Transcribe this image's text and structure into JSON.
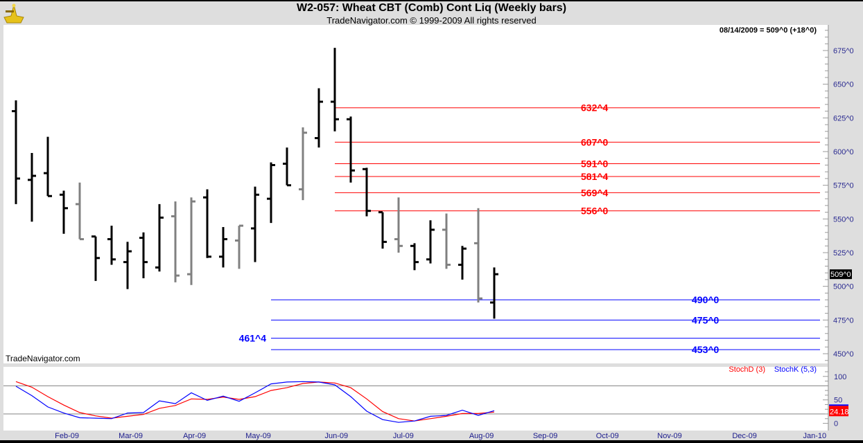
{
  "header": {
    "title": "W2-057:  Wheat CBT (Comb) Cont Liq  (Weekly bars)",
    "subtitle": "TradeNavigator.com © 1999-2009 All rights reserved",
    "last_readout": "08/14/2009 = 509^0 (+18^0)",
    "watermark": "TradeNavigator.com"
  },
  "chart_data": [
    {
      "type": "ohlc",
      "title": "W2-057: Wheat CBT (Comb) Cont Liq (Weekly bars)",
      "ylim": [
        445,
        690
      ],
      "y_ticks": [
        450,
        475,
        500,
        525,
        550,
        575,
        600,
        625,
        650,
        675
      ],
      "y_tick_labels": [
        "450^0",
        "475^0",
        "500^0",
        "525^0",
        "550^0",
        "575^0",
        "600^0",
        "625^0",
        "650^0",
        "675^0"
      ],
      "last_price_label": "509^0",
      "x_month_labels": [
        {
          "label": "Feb-09",
          "bar": 3.2
        },
        {
          "label": "Mar-09",
          "bar": 7.2
        },
        {
          "label": "Apr-09",
          "bar": 11.2
        },
        {
          "label": "May-09",
          "bar": 15.2
        },
        {
          "label": "Jun-09",
          "bar": 20.1
        },
        {
          "label": "Jul-09",
          "bar": 24.3
        },
        {
          "label": "Aug-09",
          "bar": 29.2
        },
        {
          "label": "Sep-09",
          "bar": 33.2
        },
        {
          "label": "Oct-09",
          "bar": 37.1
        },
        {
          "label": "Nov-09",
          "bar": 41.0
        },
        {
          "label": "Dec-09",
          "bar": 45.7
        },
        {
          "label": "Jan-10",
          "bar": 50.1
        }
      ],
      "bars": [
        {
          "o": 630,
          "h": 638,
          "l": 561,
          "c": 580,
          "gray": false
        },
        {
          "o": 579,
          "h": 599,
          "l": 548,
          "c": 582,
          "gray": false
        },
        {
          "o": 584,
          "h": 611,
          "l": 567,
          "c": 567,
          "gray": false
        },
        {
          "o": 568,
          "h": 571,
          "l": 539,
          "c": 558,
          "gray": false
        },
        {
          "o": 561,
          "h": 577,
          "l": 535,
          "c": 535,
          "gray": true
        },
        {
          "o": 537,
          "h": 537,
          "l": 504,
          "c": 521,
          "gray": false
        },
        {
          "o": 535,
          "h": 545,
          "l": 516,
          "c": 520,
          "gray": false
        },
        {
          "o": 518,
          "h": 533,
          "l": 498,
          "c": 526,
          "gray": false
        },
        {
          "o": 536,
          "h": 540,
          "l": 506,
          "c": 518,
          "gray": false
        },
        {
          "o": 514,
          "h": 561,
          "l": 511,
          "c": 551,
          "gray": false
        },
        {
          "o": 552,
          "h": 563,
          "l": 503,
          "c": 508,
          "gray": true
        },
        {
          "o": 509,
          "h": 566,
          "l": 501,
          "c": 563,
          "gray": true
        },
        {
          "o": 566,
          "h": 572,
          "l": 521,
          "c": 522,
          "gray": false
        },
        {
          "o": 522,
          "h": 544,
          "l": 514,
          "c": 535,
          "gray": false
        },
        {
          "o": 534,
          "h": 545,
          "l": 513,
          "c": 545,
          "gray": true
        },
        {
          "o": 543,
          "h": 574,
          "l": 518,
          "c": 568,
          "gray": false
        },
        {
          "o": 565,
          "h": 592,
          "l": 547,
          "c": 590,
          "gray": false
        },
        {
          "o": 591,
          "h": 603,
          "l": 575,
          "c": 575,
          "gray": false
        },
        {
          "o": 572,
          "h": 618,
          "l": 564,
          "c": 614,
          "gray": true
        },
        {
          "o": 610,
          "h": 647,
          "l": 603,
          "c": 637,
          "gray": false
        },
        {
          "o": 637,
          "h": 677,
          "l": 615,
          "c": 624,
          "gray": false
        },
        {
          "o": 624,
          "h": 626,
          "l": 577,
          "c": 586,
          "gray": false
        },
        {
          "o": 587,
          "h": 588,
          "l": 552,
          "c": 556,
          "gray": false
        },
        {
          "o": 555,
          "h": 555,
          "l": 528,
          "c": 533,
          "gray": false
        },
        {
          "o": 535,
          "h": 566,
          "l": 525,
          "c": 530,
          "gray": true
        },
        {
          "o": 530,
          "h": 532,
          "l": 512,
          "c": 518,
          "gray": false
        },
        {
          "o": 520,
          "h": 549,
          "l": 517,
          "c": 542,
          "gray": false
        },
        {
          "o": 542,
          "h": 554,
          "l": 513,
          "c": 516,
          "gray": true
        },
        {
          "o": 516,
          "h": 530,
          "l": 505,
          "c": 528,
          "gray": false
        },
        {
          "o": 532,
          "h": 558,
          "l": 488,
          "c": 491,
          "gray": true
        },
        {
          "o": 488,
          "h": 514,
          "l": 476,
          "c": 509,
          "gray": false
        }
      ],
      "levels": [
        {
          "price": 632.5,
          "label": "632^4",
          "color": "#ff0000",
          "start_bar": 20,
          "label_side": "right"
        },
        {
          "price": 607,
          "label": "607^0",
          "color": "#ff0000",
          "start_bar": 20,
          "label_side": "right"
        },
        {
          "price": 591,
          "label": "591^0",
          "color": "#ff0000",
          "start_bar": 20,
          "label_side": "right"
        },
        {
          "price": 581.5,
          "label": "581^4",
          "color": "#ff0000",
          "start_bar": 20,
          "label_side": "right"
        },
        {
          "price": 569.5,
          "label": "569^4",
          "color": "#ff0000",
          "start_bar": 20,
          "label_side": "right"
        },
        {
          "price": 556,
          "label": "556^0",
          "color": "#ff0000",
          "start_bar": 20,
          "label_side": "right"
        },
        {
          "price": 490,
          "label": "490^0",
          "color": "#0000ff",
          "start_bar": 16,
          "label_side": "far-right"
        },
        {
          "price": 475,
          "label": "475^0",
          "color": "#0000ff",
          "start_bar": 16,
          "label_side": "far-right"
        },
        {
          "price": 461.5,
          "label": "461^4",
          "color": "#0000ff",
          "start_bar": 16,
          "label_side": "left"
        },
        {
          "price": 453,
          "label": "453^0",
          "color": "#0000ff",
          "start_bar": 16,
          "label_side": "far-right"
        }
      ]
    },
    {
      "type": "line",
      "title": "Stochastics",
      "ylim": [
        0,
        100
      ],
      "y_ticks": [
        0,
        50,
        100
      ],
      "y_tick_labels": [
        "0",
        "50",
        "100"
      ],
      "reference_lines": [
        20,
        80
      ],
      "last_value_label": "24.18",
      "series": [
        {
          "name": "StochD (3)",
          "color": "#ff0000",
          "values": [
            89,
            77,
            57,
            39,
            23,
            16,
            11,
            15,
            19,
            32,
            38,
            52,
            51,
            56,
            51,
            57,
            70,
            76,
            85,
            88,
            86,
            76,
            52,
            25,
            10,
            5,
            10,
            15,
            21,
            21,
            24
          ]
        },
        {
          "name": "StochK (5,3)",
          "color": "#0000ff",
          "values": [
            79,
            59,
            35,
            22,
            12,
            11,
            10,
            22,
            23,
            48,
            42,
            65,
            49,
            58,
            47,
            65,
            84,
            88,
            89,
            88,
            82,
            57,
            26,
            8,
            2,
            5,
            15,
            17,
            28,
            17,
            27
          ]
        }
      ]
    }
  ]
}
